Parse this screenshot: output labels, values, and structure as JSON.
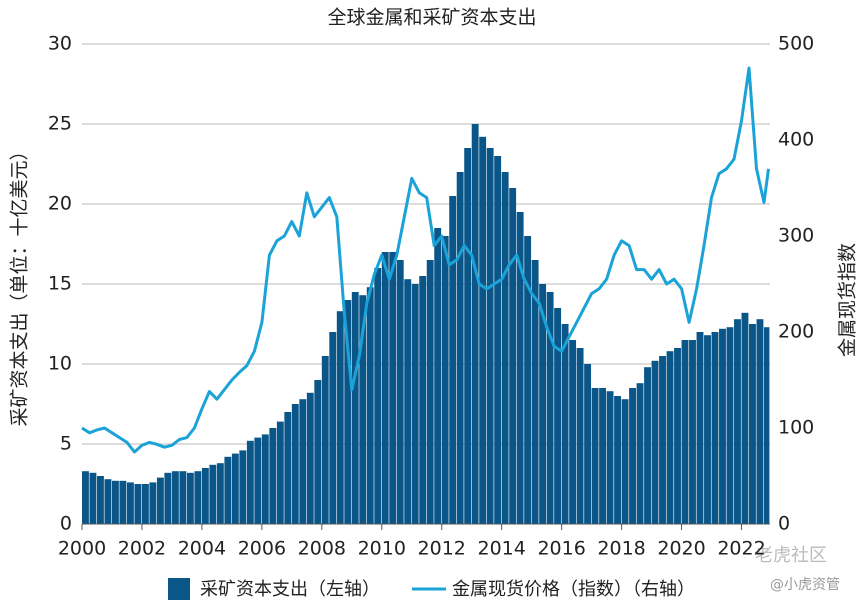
{
  "chart_data": {
    "type": "bar_line",
    "title": "全球金属和采矿资本支出",
    "y_label": "采矿资本支出（单位：十亿美元）",
    "y2_label": "金属现货指数",
    "watermarks": [
      "老虎社区",
      "@小虎资管"
    ],
    "xlim": [
      2000,
      2022.95
    ],
    "xticks": [
      2000,
      2002,
      2004,
      2006,
      2008,
      2010,
      2012,
      2014,
      2016,
      2018,
      2020,
      2022
    ],
    "ylim": [
      0,
      30
    ],
    "yticks": [
      0,
      5,
      10,
      15,
      20,
      25,
      30
    ],
    "y2lim": [
      0,
      500
    ],
    "y2ticks": [
      0,
      100,
      200,
      300,
      400,
      500
    ],
    "grid": true,
    "series": [
      {
        "name": "采矿资本支出（左轴）",
        "color": "#0b5689",
        "type": "bar",
        "x": [
          2000,
          2000.25,
          2000.5,
          2000.75,
          2001,
          2001.25,
          2001.5,
          2001.75,
          2002,
          2002.25,
          2002.5,
          2002.75,
          2003,
          2003.25,
          2003.5,
          2003.75,
          2004,
          2004.25,
          2004.5,
          2004.75,
          2005,
          2005.25,
          2005.5,
          2005.75,
          2006,
          2006.25,
          2006.5,
          2006.75,
          2007,
          2007.25,
          2007.5,
          2007.75,
          2008,
          2008.25,
          2008.5,
          2008.75,
          2009,
          2009.25,
          2009.5,
          2009.75,
          2010,
          2010.25,
          2010.5,
          2010.75,
          2011,
          2011.25,
          2011.5,
          2011.75,
          2012,
          2012.25,
          2012.5,
          2012.75,
          2013,
          2013.25,
          2013.5,
          2013.75,
          2014,
          2014.25,
          2014.5,
          2014.75,
          2015,
          2015.25,
          2015.5,
          2015.75,
          2016,
          2016.25,
          2016.5,
          2016.75,
          2017,
          2017.25,
          2017.5,
          2017.75,
          2018,
          2018.25,
          2018.5,
          2018.75,
          2019,
          2019.25,
          2019.5,
          2019.75,
          2020,
          2020.25,
          2020.5,
          2020.75,
          2021,
          2021.25,
          2021.5,
          2021.75,
          2022,
          2022.25,
          2022.5,
          2022.75
        ],
        "values": [
          3.3,
          3.2,
          3.0,
          2.8,
          2.7,
          2.7,
          2.6,
          2.5,
          2.5,
          2.6,
          2.9,
          3.2,
          3.3,
          3.3,
          3.2,
          3.3,
          3.5,
          3.7,
          3.8,
          4.2,
          4.4,
          4.6,
          5.2,
          5.4,
          5.6,
          6.0,
          6.4,
          7.0,
          7.5,
          7.8,
          8.2,
          9.0,
          10.5,
          12,
          13.3,
          14,
          14.5,
          14.3,
          14.8,
          16,
          17,
          17,
          16.5,
          15.3,
          15,
          15.5,
          16.5,
          18.5,
          18,
          20.5,
          22,
          23.5,
          25,
          24.2,
          23.5,
          23,
          22,
          21,
          19.5,
          18,
          16.5,
          15,
          14.5,
          13.5,
          12.5,
          11.5,
          11,
          10,
          8.5,
          8.5,
          8.3,
          8.0,
          7.8,
          8.5,
          8.8,
          9.8,
          10.2,
          10.5,
          10.8,
          11,
          11.5,
          11.5,
          12,
          11.8,
          12,
          12.2,
          12.3,
          12.8,
          13.2,
          12.5,
          12.8,
          12.3
        ]
      },
      {
        "name": "金属现货价格（指数）（右轴）",
        "color": "#1ba3d8",
        "type": "line",
        "axis": "y2",
        "x": [
          2000,
          2000.25,
          2000.5,
          2000.75,
          2001,
          2001.25,
          2001.5,
          2001.75,
          2002,
          2002.25,
          2002.5,
          2002.75,
          2003,
          2003.25,
          2003.5,
          2003.75,
          2004,
          2004.25,
          2004.5,
          2004.75,
          2005,
          2005.25,
          2005.5,
          2005.75,
          2006,
          2006.25,
          2006.5,
          2006.75,
          2007,
          2007.25,
          2007.5,
          2007.75,
          2008,
          2008.25,
          2008.5,
          2008.75,
          2009,
          2009.25,
          2009.5,
          2009.75,
          2010,
          2010.25,
          2010.5,
          2010.75,
          2011,
          2011.25,
          2011.5,
          2011.75,
          2012,
          2012.25,
          2012.5,
          2012.75,
          2013,
          2013.25,
          2013.5,
          2013.75,
          2014,
          2014.25,
          2014.5,
          2014.75,
          2015,
          2015.25,
          2015.5,
          2015.75,
          2016,
          2016.25,
          2016.5,
          2016.75,
          2017,
          2017.25,
          2017.5,
          2017.75,
          2018,
          2018.25,
          2018.5,
          2018.75,
          2019,
          2019.25,
          2019.5,
          2019.75,
          2020,
          2020.25,
          2020.5,
          2020.75,
          2021,
          2021.25,
          2021.5,
          2021.75,
          2022,
          2022.25,
          2022.5,
          2022.75,
          2022.9
        ],
        "values": [
          100,
          95,
          98,
          100,
          95,
          90,
          85,
          75,
          82,
          85,
          83,
          80,
          82,
          88,
          90,
          100,
          120,
          138,
          130,
          140,
          150,
          158,
          165,
          180,
          210,
          280,
          295,
          300,
          315,
          300,
          345,
          320,
          330,
          340,
          320,
          220,
          140,
          175,
          230,
          260,
          280,
          255,
          280,
          320,
          360,
          345,
          340,
          290,
          300,
          270,
          275,
          290,
          280,
          250,
          245,
          250,
          255,
          270,
          280,
          255,
          240,
          230,
          205,
          185,
          180,
          195,
          210,
          225,
          240,
          245,
          255,
          280,
          295,
          290,
          265,
          265,
          255,
          265,
          250,
          255,
          245,
          210,
          245,
          290,
          340,
          365,
          370,
          380,
          420,
          475,
          370,
          335,
          370
        ]
      }
    ]
  }
}
